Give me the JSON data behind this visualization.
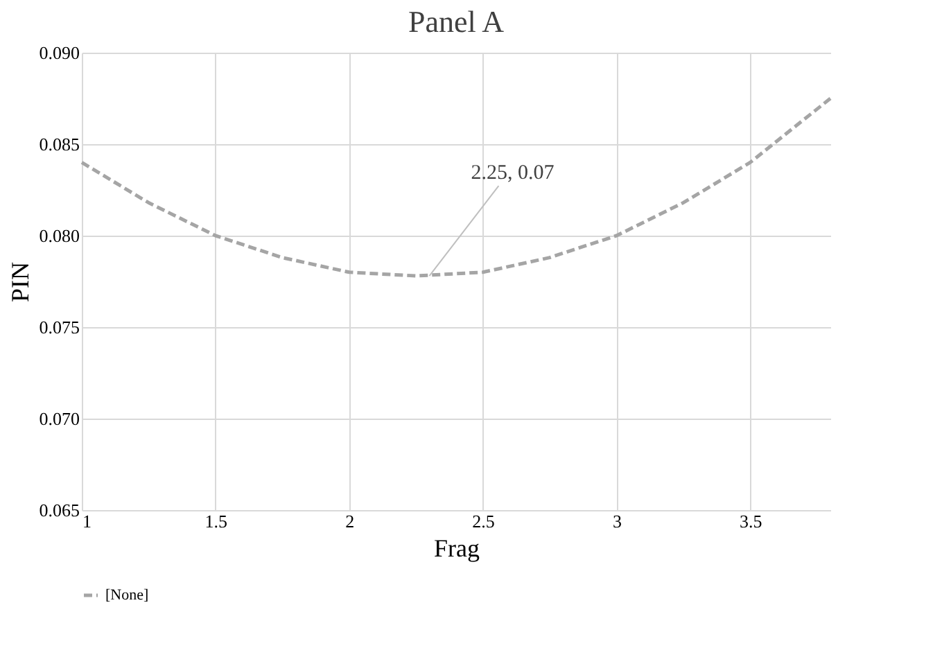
{
  "chart_data": {
    "type": "line",
    "title": "Panel A",
    "xlabel": "Frag",
    "ylabel": "PIN",
    "x": [
      1,
      1.25,
      1.5,
      1.75,
      2,
      2.25,
      2.5,
      2.75,
      3,
      3.25,
      3.5,
      3.8
    ],
    "series": [
      {
        "name": "[None]",
        "color": "#a5a5a5",
        "values": [
          0.084,
          0.0818,
          0.08,
          0.0788,
          0.078,
          0.0778,
          0.078,
          0.0788,
          0.08,
          0.0818,
          0.084,
          0.0875
        ]
      }
    ],
    "xlim": [
      1,
      3.8
    ],
    "xticks": [
      1,
      1.5,
      2,
      2.5,
      3,
      3.5
    ],
    "ylim": [
      0.065,
      0.09
    ],
    "yticks": [
      0.065,
      {
        "value": 0.07,
        "label": "0.070"
      },
      0.075,
      {
        "value": 0.08,
        "label": "0.080"
      },
      0.085,
      {
        "value": 0.09,
        "label": "0.090"
      }
    ],
    "annotations": [
      {
        "text": "2.25, 0.07",
        "x": 2.3,
        "y": 0.0778
      }
    ],
    "grid": true,
    "legend": "bottom",
    "line_style": "dashed",
    "marker": "none"
  }
}
